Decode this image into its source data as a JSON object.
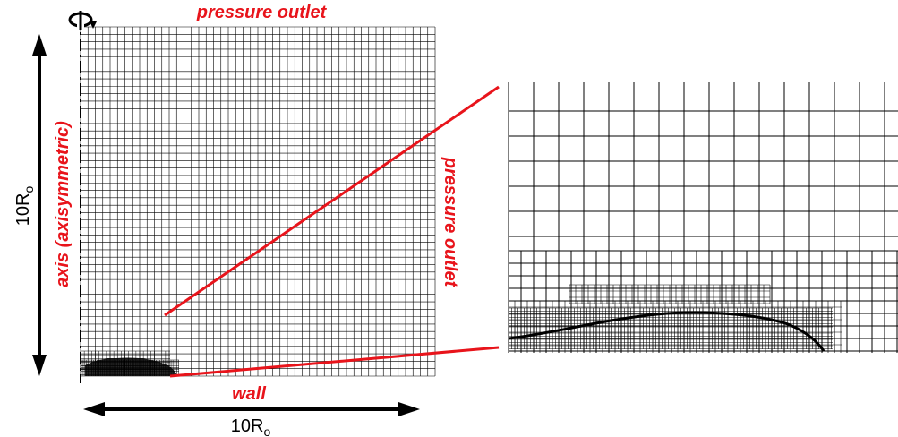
{
  "labels": {
    "top_boundary": "pressure outlet",
    "right_boundary": "pressure outlet",
    "bottom_boundary": "wall",
    "left_boundary": "axis (axisymmetric)",
    "height_dim": "10R",
    "height_sub": "o",
    "width_dim": "10R",
    "width_sub": "o"
  },
  "colors": {
    "label": "#e8141b",
    "zoom_line": "#e8141b",
    "grid": "#000000"
  },
  "icons": [
    "rotation-arrow-icon"
  ]
}
